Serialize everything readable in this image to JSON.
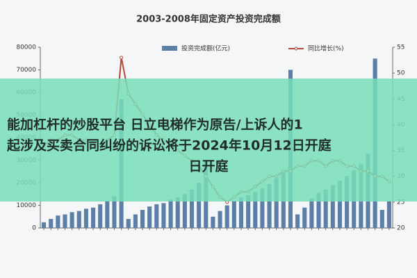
{
  "chart_data": {
    "type": "bar-line",
    "title": "2003-2008年固定资产投资完成额",
    "categories": [
      null,
      null,
      null,
      null,
      null,
      null,
      null,
      null,
      null,
      null,
      null,
      null,
      null,
      null,
      null,
      null,
      null,
      null,
      null,
      null,
      null,
      null,
      null,
      null,
      null,
      null,
      null,
      null,
      null,
      null,
      null,
      null,
      null,
      null,
      null,
      null,
      null,
      null,
      null,
      null,
      null,
      null,
      null,
      null,
      null,
      null,
      null,
      null,
      null,
      null
    ],
    "series": [
      {
        "name": "投资完成额(亿元)",
        "color": "#5b7fa6",
        "type": "bar",
        "values": [
          2500,
          4000,
          5500,
          6000,
          7000,
          7500,
          8500,
          9000,
          10500,
          12000,
          14000,
          57000,
          4000,
          6000,
          8000,
          9500,
          10500,
          11000,
          12500,
          13500,
          15000,
          17000,
          20000,
          30000,
          5000,
          7500,
          10000,
          12000,
          13500,
          14500,
          16000,
          17500,
          19500,
          22000,
          25000,
          70000,
          6000,
          9000,
          13000,
          15500,
          17000,
          19000,
          21000,
          23000,
          25500,
          28500,
          33000,
          75000,
          8000,
          12000
        ]
      },
      {
        "name": "同比增长(%)",
        "color": "#b5483a",
        "type": "line",
        "axis": "y2",
        "values": [
          36,
          37,
          37,
          38,
          38,
          37,
          37,
          36,
          36,
          37,
          38,
          53,
          46,
          44,
          42,
          40,
          38,
          37,
          36,
          35,
          34,
          33,
          32,
          30,
          28,
          26,
          25,
          26,
          27,
          27,
          28,
          29,
          30,
          30,
          31,
          31,
          32,
          32,
          33,
          33,
          32,
          33,
          33,
          32,
          32,
          31,
          31,
          30,
          30,
          29
        ]
      }
    ],
    "ylim": [
      0,
      80000
    ],
    "yticks": [
      0,
      10000,
      20000,
      30000,
      40000,
      50000,
      60000,
      70000,
      80000
    ],
    "y2lim": [
      20,
      55
    ],
    "y2ticks": [
      20,
      25,
      30,
      35,
      40,
      45,
      50,
      55
    ],
    "grid": false,
    "legend": "top"
  },
  "overlay": {
    "lines": [
      "能加杠杆的炒股平台 日立电梯作为原告/上诉人的1",
      "起涉及买卖合同纠纷的诉讼将于2024年10月12日开庭",
      "日开庭"
    ]
  }
}
